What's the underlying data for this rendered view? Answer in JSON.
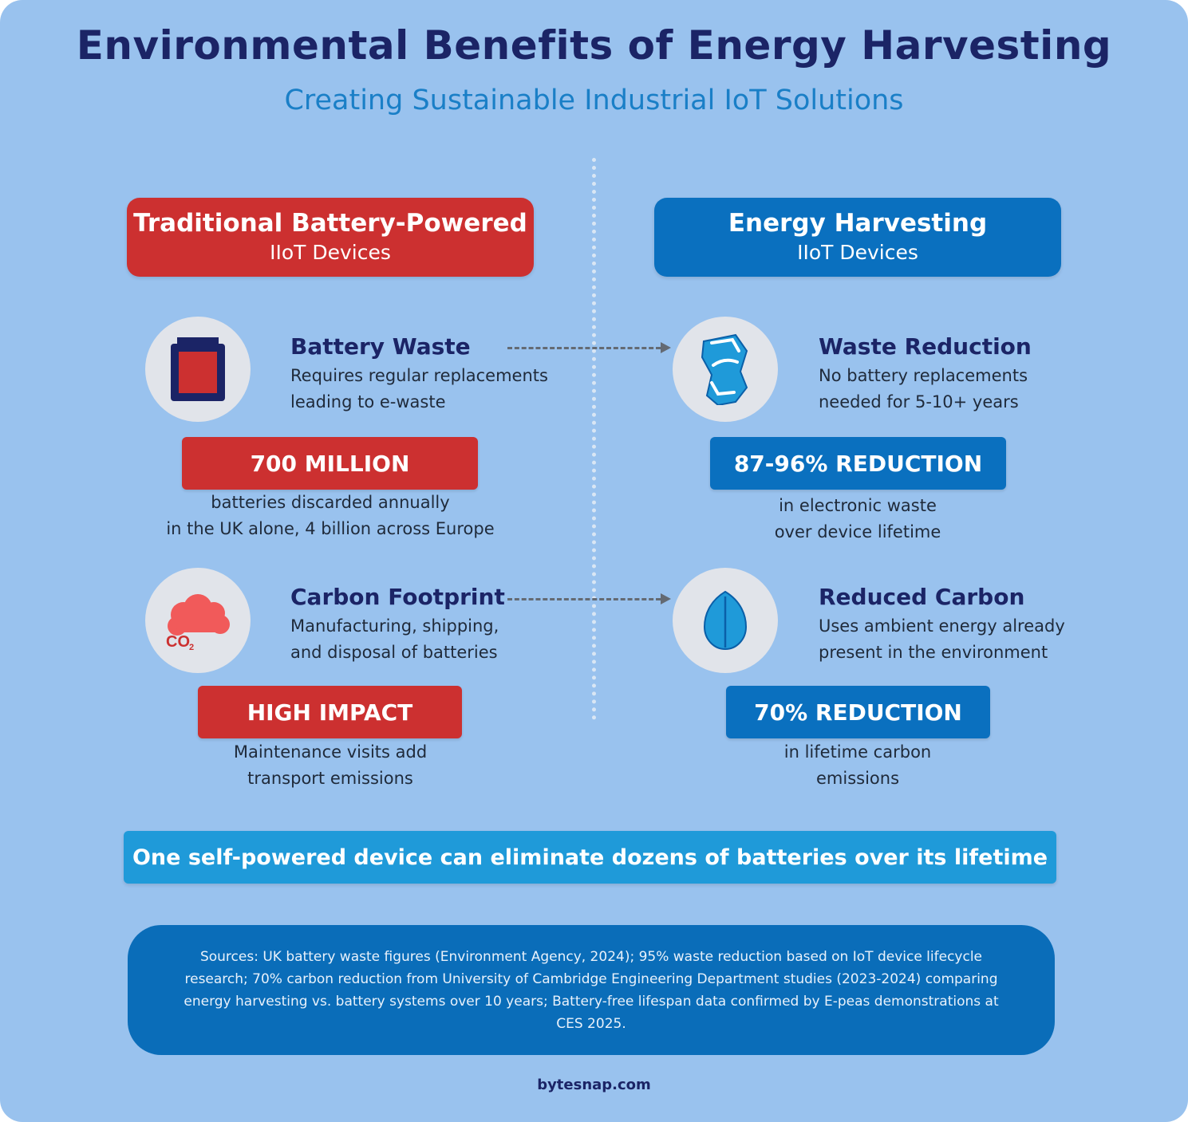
{
  "title": "Environmental Benefits of Energy Harvesting",
  "subtitle": "Creating Sustainable Industrial IoT Solutions",
  "left": {
    "header_main": "Traditional Battery-Powered",
    "header_sub": "IIoT Devices",
    "color": "#cc3030",
    "items": [
      {
        "icon": "battery-icon",
        "title": "Battery Waste",
        "desc1": "Requires regular replacements",
        "desc2": "leading to e-waste",
        "stat": "700 MILLION",
        "stat_text1": "batteries discarded annually",
        "stat_text2": "in the UK alone, 4 billion across Europe"
      },
      {
        "icon": "co2-cloud-icon",
        "icon_label": "CO",
        "icon_sub": "2",
        "title": "Carbon Footprint",
        "desc1": "Manufacturing, shipping,",
        "desc2": "and disposal of batteries",
        "stat": "HIGH IMPACT",
        "stat_text1": "Maintenance visits add",
        "stat_text2": "transport emissions"
      }
    ]
  },
  "right": {
    "header_main": "Energy Harvesting",
    "header_sub": "IIoT Devices",
    "color": "#0a70bf",
    "items": [
      {
        "icon": "recycle-icon",
        "title": "Waste Reduction",
        "desc1": "No battery replacements",
        "desc2": "needed for 5-10+ years",
        "stat": "87-96% REDUCTION",
        "stat_text1": "in electronic waste",
        "stat_text2": "over device lifetime"
      },
      {
        "icon": "leaf-icon",
        "title": "Reduced Carbon",
        "desc1": "Uses ambient energy already",
        "desc2": "present in the environment",
        "stat": "70% REDUCTION",
        "stat_text1": "in lifetime carbon",
        "stat_text2": "emissions"
      }
    ]
  },
  "banner": "One self-powered device can eliminate dozens of batteries over its lifetime",
  "sources": "Sources: UK battery waste figures (Environment Agency, 2024); 95% waste reduction based on IoT device lifecycle research; 70% carbon reduction from University of Cambridge Engineering Department studies (2023-2024) comparing energy harvesting vs. battery systems over 10 years; Battery-free lifespan data confirmed by E-peas demonstrations at CES 2025.",
  "footer": "bytesnap.com"
}
